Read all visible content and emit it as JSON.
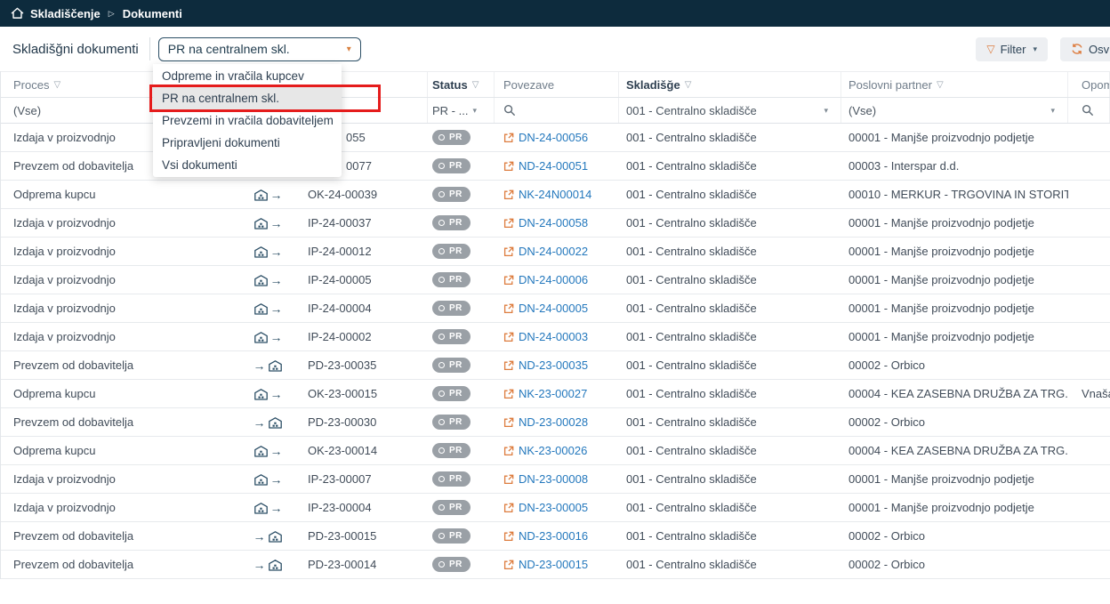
{
  "colors": {
    "navbar_bg": "#0d2b3d",
    "accent_orange": "#dd7c3e",
    "link_blue": "#2478bd",
    "status_pill_gray": "#9aa0a6",
    "highlight_red": "#e51c1c"
  },
  "glyphs": {
    "caret_down": "▾",
    "breadcrumb_separator": "▷",
    "funnel": "▽",
    "arrow_right": "→"
  },
  "nav": {
    "breadcrumb": {
      "section": "Skladiščenje",
      "page": "Dokumenti"
    }
  },
  "toolbar": {
    "title": "Skladišğni dokumenti",
    "view_select": {
      "value": "PR na centralnem skl."
    },
    "filter_button": "Filter",
    "refresh_button": "Osv"
  },
  "dropdown": {
    "selected_index": 1,
    "items": [
      "Odpreme in vračila kupcev",
      "PR na centralnem skl.",
      "Prevzemi in vračila dobaviteljem",
      "Pripravljeni dokumenti",
      "Vsi dokumenti"
    ]
  },
  "table": {
    "columns": [
      {
        "label": "Proces"
      },
      {
        "label": ""
      },
      {
        "label": ""
      },
      {
        "label": "Status"
      },
      {
        "label": "Povezave"
      },
      {
        "label": "Skladišğe"
      },
      {
        "label": "Poslovni partner"
      },
      {
        "label": "Opomb"
      }
    ],
    "filters": {
      "proces": "(Vse)",
      "status": "PR - ...",
      "skladisce": "001 - Centralno skladišče",
      "partner": "(Vse)"
    },
    "rows": [
      {
        "proces": "Izdaja v proizvodnjo",
        "dir": null,
        "partial": true,
        "doc": "055",
        "status": "PR",
        "link": "DN-24-00056",
        "skladisce": "001 - Centralno skladišče",
        "partner": "00001 - Manjše proizvodnjo podjetje",
        "note": ""
      },
      {
        "proces": "Prevzem od dobavitelja",
        "dir": null,
        "partial": true,
        "doc": "0077",
        "status": "PR",
        "link": "ND-24-00051",
        "skladisce": "001 - Centralno skladišče",
        "partner": "00003 - Interspar d.d.",
        "note": ""
      },
      {
        "proces": "Odprema kupcu",
        "dir": "out",
        "partial": false,
        "doc": "OK-24-00039",
        "status": "PR",
        "link": "NK-24N00014",
        "skladisce": "001 - Centralno skladišče",
        "partner": "00010 - MERKUR - TRGOVINA IN STORIT...",
        "note": ""
      },
      {
        "proces": "Izdaja v proizvodnjo",
        "dir": "out",
        "partial": false,
        "doc": "IP-24-00037",
        "status": "PR",
        "link": "DN-24-00058",
        "skladisce": "001 - Centralno skladišče",
        "partner": "00001 - Manjše proizvodnjo podjetje",
        "note": ""
      },
      {
        "proces": "Izdaja v proizvodnjo",
        "dir": "out",
        "partial": false,
        "doc": "IP-24-00012",
        "status": "PR",
        "link": "DN-24-00022",
        "skladisce": "001 - Centralno skladišče",
        "partner": "00001 - Manjše proizvodnjo podjetje",
        "note": ""
      },
      {
        "proces": "Izdaja v proizvodnjo",
        "dir": "out",
        "partial": false,
        "doc": "IP-24-00005",
        "status": "PR",
        "link": "DN-24-00006",
        "skladisce": "001 - Centralno skladišče",
        "partner": "00001 - Manjše proizvodnjo podjetje",
        "note": ""
      },
      {
        "proces": "Izdaja v proizvodnjo",
        "dir": "out",
        "partial": false,
        "doc": "IP-24-00004",
        "status": "PR",
        "link": "DN-24-00005",
        "skladisce": "001 - Centralno skladišče",
        "partner": "00001 - Manjše proizvodnjo podjetje",
        "note": ""
      },
      {
        "proces": "Izdaja v proizvodnjo",
        "dir": "out",
        "partial": false,
        "doc": "IP-24-00002",
        "status": "PR",
        "link": "DN-24-00003",
        "skladisce": "001 - Centralno skladišče",
        "partner": "00001 - Manjše proizvodnjo podjetje",
        "note": ""
      },
      {
        "proces": "Prevzem od dobavitelja",
        "dir": "in",
        "partial": false,
        "doc": "PD-23-00035",
        "status": "PR",
        "link": "ND-23-00035",
        "skladisce": "001 - Centralno skladišče",
        "partner": "00002 - Orbico",
        "note": ""
      },
      {
        "proces": "Odprema kupcu",
        "dir": "out",
        "partial": false,
        "doc": "OK-23-00015",
        "status": "PR",
        "link": "NK-23-00027",
        "skladisce": "001 - Centralno skladišče",
        "partner": "00004 - KEA ZASEBNA DRUŽBA ZA TRG...",
        "note": "Vnašale"
      },
      {
        "proces": "Prevzem od dobavitelja",
        "dir": "in",
        "partial": false,
        "doc": "PD-23-00030",
        "status": "PR",
        "link": "ND-23-00028",
        "skladisce": "001 - Centralno skladišče",
        "partner": "00002 - Orbico",
        "note": ""
      },
      {
        "proces": "Odprema kupcu",
        "dir": "out",
        "partial": false,
        "doc": "OK-23-00014",
        "status": "PR",
        "link": "NK-23-00026",
        "skladisce": "001 - Centralno skladišče",
        "partner": "00004 - KEA ZASEBNA DRUŽBA ZA TRG...",
        "note": ""
      },
      {
        "proces": "Izdaja v proizvodnjo",
        "dir": "out",
        "partial": false,
        "doc": "IP-23-00007",
        "status": "PR",
        "link": "DN-23-00008",
        "skladisce": "001 - Centralno skladišče",
        "partner": "00001 - Manjše proizvodnjo podjetje",
        "note": ""
      },
      {
        "proces": "Izdaja v proizvodnjo",
        "dir": "out",
        "partial": false,
        "doc": "IP-23-00004",
        "status": "PR",
        "link": "DN-23-00005",
        "skladisce": "001 - Centralno skladišče",
        "partner": "00001 - Manjše proizvodnjo podjetje",
        "note": ""
      },
      {
        "proces": "Prevzem od dobavitelja",
        "dir": "in",
        "partial": false,
        "doc": "PD-23-00015",
        "status": "PR",
        "link": "ND-23-00016",
        "skladisce": "001 - Centralno skladišče",
        "partner": "00002 - Orbico",
        "note": ""
      },
      {
        "proces": "Prevzem od dobavitelja",
        "dir": "in",
        "partial": false,
        "doc": "PD-23-00014",
        "status": "PR",
        "link": "ND-23-00015",
        "skladisce": "001 - Centralno skladišče",
        "partner": "00002 - Orbico",
        "note": ""
      }
    ]
  }
}
